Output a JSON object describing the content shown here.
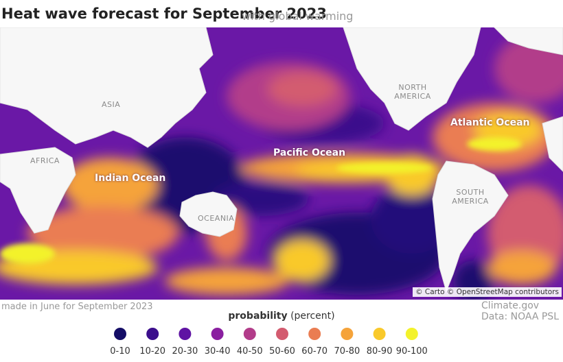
{
  "header": {
    "title": "Heat wave forecast for September 2023",
    "subtitle": "with global warming"
  },
  "map": {
    "continent_labels": [
      "ASIA",
      "AFRICA",
      "NORTH AMERICA",
      "SOUTH AMERICA",
      "OCEANIA"
    ],
    "ocean_labels": [
      "Pacific Ocean",
      "Atlantic Ocean",
      "Indian Ocean"
    ],
    "attribution": "© Carto © OpenStreetMap contributors"
  },
  "footer": {
    "note": "made in June for September 2023",
    "credit": "Climate.gov",
    "data_source": "Data: NOAA PSL"
  },
  "legend": {
    "title": "probability",
    "unit": "(percent)",
    "entries": [
      {
        "label": "0-10",
        "color": "#140d66"
      },
      {
        "label": "10-20",
        "color": "#3b0e8c"
      },
      {
        "label": "20-30",
        "color": "#5f13a3"
      },
      {
        "label": "30-40",
        "color": "#8a1fa0"
      },
      {
        "label": "40-50",
        "color": "#b23c8a"
      },
      {
        "label": "50-60",
        "color": "#d35b6f"
      },
      {
        "label": "60-70",
        "color": "#ea7d52"
      },
      {
        "label": "70-80",
        "color": "#f5a33a"
      },
      {
        "label": "80-90",
        "color": "#f9c92b"
      },
      {
        "label": "90-100",
        "color": "#f3f22b"
      }
    ]
  }
}
